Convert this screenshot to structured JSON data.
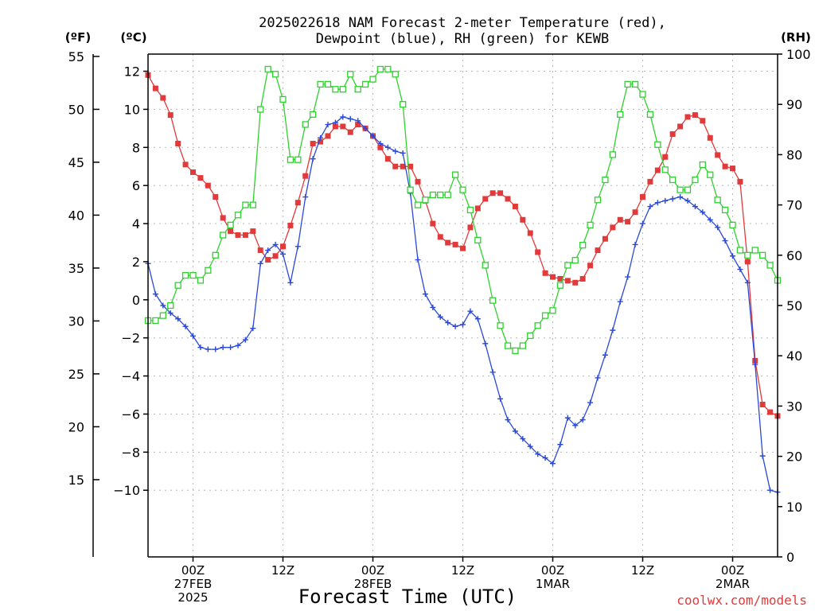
{
  "chart_data": {
    "type": "line",
    "title_line1": "2025022618 NAM Forecast 2-meter Temperature (red),",
    "title_line2": "Dewpoint (blue), RH (green) for KEWB",
    "xlabel": "Forecast Time (UTC)",
    "credit": "coolwx.com/models",
    "unit_f": "(ºF)",
    "unit_c": "(ºC)",
    "unit_rh": "(RH)",
    "x_unit": "hours after 2025-02-26 18Z",
    "x_range": [
      0,
      84
    ],
    "ylim_c": [
      -13.5,
      12.9
    ],
    "ylim_rh": [
      0,
      100
    ],
    "y_ticks_c": [
      -10,
      -8,
      -6,
      -4,
      -2,
      0,
      2,
      4,
      6,
      8,
      10,
      12
    ],
    "y_ticks_c_labels": [
      "−10",
      "−8",
      "−6",
      "−4",
      "−2",
      "0",
      "2",
      "4",
      "6",
      "8",
      "10",
      "12"
    ],
    "y_ticks_f": [
      15,
      20,
      25,
      30,
      35,
      40,
      45,
      50,
      55
    ],
    "y_ticks_rh": [
      0,
      10,
      20,
      30,
      40,
      50,
      60,
      70,
      80,
      90,
      100
    ],
    "x_ticks": [
      {
        "h": 6,
        "lines": [
          "00Z",
          "27FEB",
          "2025"
        ]
      },
      {
        "h": 18,
        "lines": [
          "12Z"
        ]
      },
      {
        "h": 30,
        "lines": [
          "00Z",
          "28FEB"
        ]
      },
      {
        "h": 42,
        "lines": [
          "12Z"
        ]
      },
      {
        "h": 54,
        "lines": [
          "00Z",
          "1MAR"
        ]
      },
      {
        "h": 66,
        "lines": [
          "12Z"
        ]
      },
      {
        "h": 78,
        "lines": [
          "00Z",
          "2MAR"
        ]
      }
    ],
    "grid": true,
    "series": [
      {
        "name": "Temperature",
        "unit": "°C",
        "color": "#e23a3a",
        "marker": "filled-square",
        "x": [
          0,
          1,
          2,
          3,
          4,
          5,
          6,
          7,
          8,
          9,
          10,
          11,
          12,
          13,
          14,
          15,
          16,
          17,
          18,
          19,
          20,
          21,
          22,
          23,
          24,
          25,
          26,
          27,
          28,
          29,
          30,
          31,
          32,
          33,
          34,
          35,
          36,
          37,
          38,
          39,
          40,
          41,
          42,
          43,
          44,
          45,
          46,
          47,
          48,
          49,
          50,
          51,
          52,
          53,
          54,
          55,
          56,
          57,
          58,
          59,
          60,
          61,
          62,
          63,
          64,
          65,
          66,
          67,
          68,
          69,
          70,
          71,
          72,
          73,
          74,
          75,
          76,
          77,
          78,
          79,
          80,
          81,
          82,
          83,
          84
        ],
        "values": [
          11.8,
          11.1,
          10.6,
          9.7,
          8.2,
          7.1,
          6.7,
          6.4,
          6.0,
          5.4,
          4.3,
          3.6,
          3.4,
          3.4,
          3.6,
          2.6,
          2.1,
          2.3,
          2.8,
          3.9,
          5.1,
          6.5,
          8.2,
          8.3,
          8.6,
          9.1,
          9.1,
          8.8,
          9.2,
          9.0,
          8.6,
          8.0,
          7.4,
          7.0,
          7.0,
          7.0,
          6.2,
          5.2,
          4.0,
          3.3,
          3.0,
          2.9,
          2.7,
          3.8,
          4.8,
          5.3,
          5.6,
          5.6,
          5.3,
          4.9,
          4.2,
          3.5,
          2.5,
          1.4,
          1.2,
          1.1,
          1.0,
          0.9,
          1.1,
          1.8,
          2.6,
          3.2,
          3.8,
          4.2,
          4.1,
          4.6,
          5.4,
          6.2,
          6.8,
          7.5,
          8.7,
          9.1,
          9.6,
          9.7,
          9.4,
          8.5,
          7.6,
          7.0,
          6.9,
          6.2,
          2.0,
          -3.2,
          -5.5,
          -5.9,
          -6.1
        ]
      },
      {
        "name": "Dewpoint",
        "unit": "°C",
        "color": "#2a49d8",
        "marker": "plus",
        "x": [
          0,
          1,
          2,
          3,
          4,
          5,
          6,
          7,
          8,
          9,
          10,
          11,
          12,
          13,
          14,
          15,
          16,
          17,
          18,
          19,
          20,
          21,
          22,
          23,
          24,
          25,
          26,
          27,
          28,
          29,
          30,
          31,
          32,
          33,
          34,
          35,
          36,
          37,
          38,
          39,
          40,
          41,
          42,
          43,
          44,
          45,
          46,
          47,
          48,
          49,
          50,
          51,
          52,
          53,
          54,
          55,
          56,
          57,
          58,
          59,
          60,
          61,
          62,
          63,
          64,
          65,
          66,
          67,
          68,
          69,
          70,
          71,
          72,
          73,
          74,
          75,
          76,
          77,
          78,
          79,
          80,
          81,
          82,
          83,
          84
        ],
        "values": [
          1.9,
          0.3,
          -0.3,
          -0.7,
          -1.0,
          -1.4,
          -1.9,
          -2.5,
          -2.6,
          -2.6,
          -2.5,
          -2.5,
          -2.4,
          -2.1,
          -1.5,
          1.9,
          2.6,
          2.9,
          2.4,
          0.9,
          2.8,
          5.4,
          7.4,
          8.5,
          9.2,
          9.3,
          9.6,
          9.5,
          9.4,
          9.0,
          8.6,
          8.2,
          8.0,
          7.8,
          7.7,
          5.6,
          2.1,
          0.3,
          -0.4,
          -0.9,
          -1.2,
          -1.4,
          -1.3,
          -0.6,
          -1.0,
          -2.3,
          -3.8,
          -5.2,
          -6.3,
          -6.9,
          -7.3,
          -7.7,
          -8.1,
          -8.3,
          -8.6,
          -7.6,
          -6.2,
          -6.6,
          -6.3,
          -5.4,
          -4.1,
          -2.9,
          -1.6,
          -0.1,
          1.2,
          2.9,
          4.0,
          4.9,
          5.1,
          5.2,
          5.3,
          5.4,
          5.2,
          4.9,
          4.6,
          4.2,
          3.8,
          3.1,
          2.3,
          1.6,
          0.9,
          -3.4,
          -8.2,
          -10.0,
          -10.1
        ]
      },
      {
        "name": "RH",
        "unit": "%",
        "color": "#2fd12f",
        "marker": "open-square",
        "x": [
          0,
          1,
          2,
          3,
          4,
          5,
          6,
          7,
          8,
          9,
          10,
          11,
          12,
          13,
          14,
          15,
          16,
          17,
          18,
          19,
          20,
          21,
          22,
          23,
          24,
          25,
          26,
          27,
          28,
          29,
          30,
          31,
          32,
          33,
          34,
          35,
          36,
          37,
          38,
          39,
          40,
          41,
          42,
          43,
          44,
          45,
          46,
          47,
          48,
          49,
          50,
          51,
          52,
          53,
          54,
          55,
          56,
          57,
          58,
          59,
          60,
          61,
          62,
          63,
          64,
          65,
          66,
          67,
          68,
          69,
          70,
          71,
          72,
          73,
          74,
          75,
          76,
          77,
          78,
          79,
          80,
          81,
          82,
          83,
          84
        ],
        "values": [
          47,
          47,
          48,
          50,
          54,
          56,
          56,
          55,
          57,
          60,
          64,
          66,
          68,
          70,
          70,
          89,
          97,
          96,
          91,
          79,
          79,
          86,
          88,
          94,
          94,
          93,
          93,
          96,
          93,
          94,
          95,
          97,
          97,
          96,
          90,
          73,
          70,
          71,
          72,
          72,
          72,
          76,
          73,
          69,
          63,
          58,
          51,
          46,
          42,
          41,
          42,
          44,
          46,
          48,
          49,
          54,
          58,
          59,
          62,
          66,
          71,
          75,
          80,
          88,
          94,
          94,
          92,
          88,
          82,
          77,
          75,
          73,
          73,
          75,
          78,
          76,
          71,
          69,
          66,
          61,
          60,
          61,
          60,
          58,
          55
        ]
      }
    ]
  }
}
